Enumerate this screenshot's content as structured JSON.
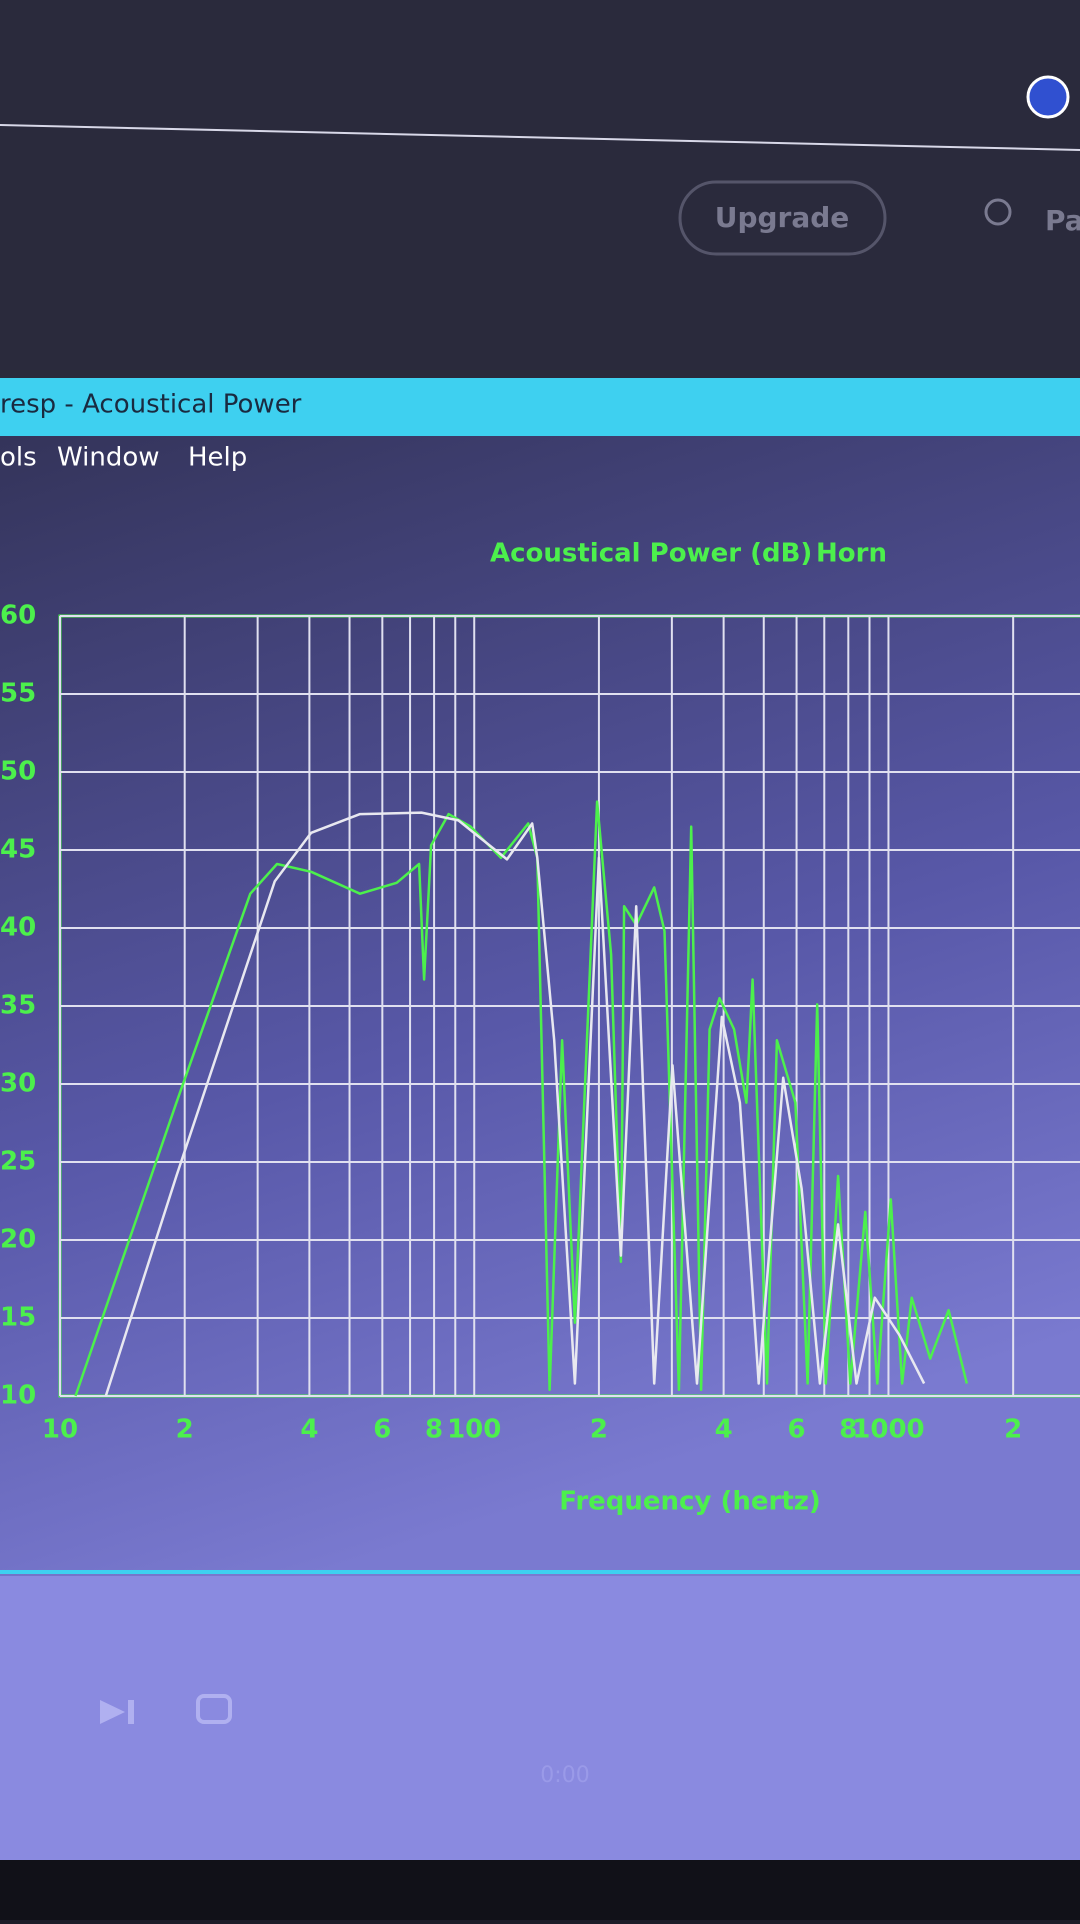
{
  "ui": {
    "account_label": "Pa",
    "upgrade_button": "Upgrade",
    "window_title": "resp - Acoustical Power",
    "menu": [
      "ols",
      "Window",
      "Help"
    ],
    "time": "0:00"
  },
  "chart_data": {
    "type": "line",
    "title": "Acoustical Power (dB)",
    "x_label": "Frequency (hertz)",
    "log_x": true,
    "grid": true,
    "xlim": [
      10,
      2900
    ],
    "ylim": [
      10,
      60
    ],
    "xticks": [
      10,
      {
        "value": 20,
        "label": "2"
      },
      {
        "value": 40,
        "label": "4"
      },
      {
        "value": 60,
        "label": "6"
      },
      {
        "value": 80,
        "label": "8"
      },
      100,
      {
        "value": 200,
        "label": "2"
      },
      {
        "value": 400,
        "label": "4"
      },
      {
        "value": 600,
        "label": "6"
      },
      {
        "value": 800,
        "label": "8"
      },
      1000,
      {
        "value": 2000,
        "label": "2"
      }
    ],
    "xminor": [
      30,
      50,
      70,
      90,
      300,
      500,
      700,
      900
    ],
    "yticks": [
      10,
      15,
      20,
      25,
      30,
      35,
      40,
      45,
      50,
      55,
      60
    ],
    "series": [
      {
        "name": "Horn",
        "color": "#4cf04c",
        "x": [
          10.9,
          19.1,
          28.8,
          33.4,
          40.4,
          53,
          65,
          73.6,
          75.7,
          78.7,
          86.7,
          98,
          116,
          135,
          142,
          152,
          163,
          175,
          198,
          214,
          226,
          230,
          246,
          272,
          288,
          312,
          334,
          353,
          370,
          391,
          424,
          454,
          470,
          509,
          538,
          596,
          638,
          673,
          706,
          756,
          809,
          879,
          940,
          1013,
          1079,
          1138,
          1261,
          1397,
          1546
        ],
        "values": [
          10,
          28.8,
          42.2,
          44.1,
          43.6,
          42.2,
          42.9,
          44.1,
          36.7,
          45.3,
          47.3,
          46.5,
          44.5,
          46.7,
          44.5,
          10.4,
          32.8,
          14.7,
          48.1,
          38.3,
          18.6,
          41.4,
          40.2,
          42.6,
          39.8,
          10.4,
          46.5,
          10.4,
          33.5,
          35.5,
          33.5,
          28.8,
          36.7,
          10.8,
          32.8,
          28.8,
          10.8,
          35.1,
          10.8,
          24.1,
          10.8,
          21.8,
          10.8,
          22.6,
          10.8,
          16.3,
          12.4,
          15.5,
          10.8
        ]
      },
      {
        "color": "#e8e8f0",
        "x": [
          12.9,
          19.1,
          33,
          40.4,
          53,
          74.6,
          91.6,
          120,
          138,
          142,
          156,
          175,
          200,
          226,
          246,
          272,
          301,
          345,
          396,
          438,
          486,
          557,
          617,
          683,
          756,
          837,
          927,
          1063,
          1219
        ],
        "values": [
          10,
          24.1,
          43,
          46.1,
          47.3,
          47.4,
          46.9,
          44.4,
          46.7,
          44.5,
          32.8,
          10.8,
          44.5,
          19,
          41.4,
          10.8,
          31.2,
          10.8,
          34.3,
          28.8,
          10.8,
          30.4,
          23.3,
          10.8,
          21,
          10.8,
          16.3,
          13.9,
          10.8
        ]
      }
    ]
  }
}
